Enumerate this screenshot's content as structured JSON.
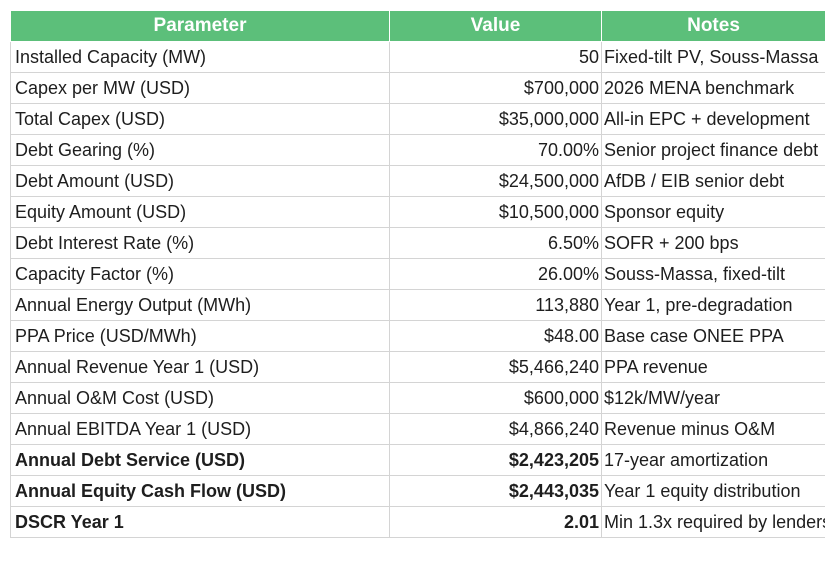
{
  "header": {
    "parameter": "Parameter",
    "value": "Value",
    "notes": "Notes"
  },
  "colors": {
    "header_bg": "#5cbf7a",
    "header_text": "#ffffff",
    "grid": "#d4d4d4"
  },
  "rows": [
    {
      "parameter": "Installed Capacity (MW)",
      "value": "50",
      "notes": "Fixed-tilt PV, Souss-Massa",
      "bold": false
    },
    {
      "parameter": "Capex per MW (USD)",
      "value": "$700,000",
      "notes": "2026 MENA benchmark",
      "bold": false
    },
    {
      "parameter": "Total Capex (USD)",
      "value": "$35,000,000",
      "notes": "All-in EPC + development",
      "bold": false
    },
    {
      "parameter": "Debt Gearing (%)",
      "value": "70.00%",
      "notes": "Senior project finance debt",
      "bold": false
    },
    {
      "parameter": "Debt Amount (USD)",
      "value": "$24,500,000",
      "notes": "AfDB / EIB senior debt",
      "bold": false
    },
    {
      "parameter": "Equity Amount (USD)",
      "value": "$10,500,000",
      "notes": "Sponsor equity",
      "bold": false
    },
    {
      "parameter": "Debt Interest Rate (%)",
      "value": "6.50%",
      "notes": "SOFR + 200 bps",
      "bold": false
    },
    {
      "parameter": "Capacity Factor (%)",
      "value": "26.00%",
      "notes": "Souss-Massa, fixed-tilt",
      "bold": false
    },
    {
      "parameter": "Annual Energy Output (MWh)",
      "value": "113,880",
      "notes": "Year 1, pre-degradation",
      "bold": false
    },
    {
      "parameter": "PPA Price (USD/MWh)",
      "value": "$48.00",
      "notes": "Base case ONEE PPA",
      "bold": false
    },
    {
      "parameter": "Annual Revenue Year 1 (USD)",
      "value": "$5,466,240",
      "notes": "PPA revenue",
      "bold": false
    },
    {
      "parameter": "Annual O&M Cost (USD)",
      "value": "$600,000",
      "notes": "$12k/MW/year",
      "bold": false
    },
    {
      "parameter": "Annual EBITDA Year 1 (USD)",
      "value": "$4,866,240",
      "notes": "Revenue minus O&M",
      "bold": false
    },
    {
      "parameter": "Annual Debt Service (USD)",
      "value": "$2,423,205",
      "notes": "17-year amortization",
      "bold": true
    },
    {
      "parameter": "Annual Equity Cash Flow (USD)",
      "value": "$2,443,035",
      "notes": "Year 1 equity distribution",
      "bold": true
    },
    {
      "parameter": "DSCR Year 1",
      "value": "2.01",
      "notes": "Min 1.3x required by lenders",
      "bold": true
    }
  ]
}
